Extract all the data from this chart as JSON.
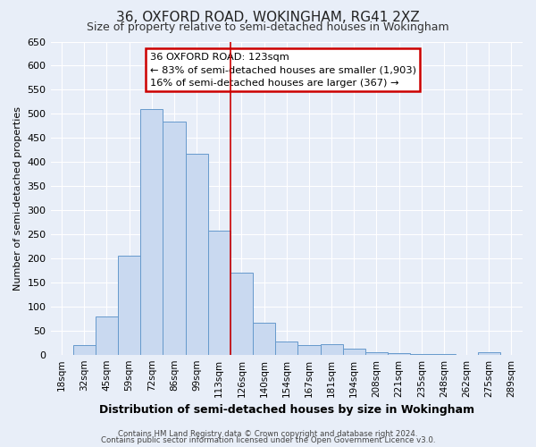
{
  "title": "36, OXFORD ROAD, WOKINGHAM, RG41 2XZ",
  "subtitle": "Size of property relative to semi-detached houses in Wokingham",
  "xlabel": "Distribution of semi-detached houses by size in Wokingham",
  "ylabel": "Number of semi-detached properties",
  "bar_labels": [
    "18sqm",
    "32sqm",
    "45sqm",
    "59sqm",
    "72sqm",
    "86sqm",
    "99sqm",
    "113sqm",
    "126sqm",
    "140sqm",
    "154sqm",
    "167sqm",
    "181sqm",
    "194sqm",
    "208sqm",
    "221sqm",
    "235sqm",
    "248sqm",
    "262sqm",
    "275sqm",
    "289sqm"
  ],
  "bar_values": [
    0,
    20,
    80,
    205,
    510,
    483,
    417,
    258,
    170,
    67,
    27,
    20,
    22,
    13,
    5,
    3,
    2,
    2,
    0,
    5,
    0
  ],
  "bar_color": "#c9d9f0",
  "bar_edgecolor": "#6699cc",
  "vline_color": "#cc0000",
  "ylim": [
    0,
    650
  ],
  "yticks": [
    0,
    50,
    100,
    150,
    200,
    250,
    300,
    350,
    400,
    450,
    500,
    550,
    600,
    650
  ],
  "annotation_title": "36 OXFORD ROAD: 123sqm",
  "annotation_line1": "← 83% of semi-detached houses are smaller (1,903)",
  "annotation_line2": "16% of semi-detached houses are larger (367) →",
  "annotation_box_edgecolor": "#cc0000",
  "footer1": "Contains HM Land Registry data © Crown copyright and database right 2024.",
  "footer2": "Contains public sector information licensed under the Open Government Licence v3.0.",
  "bg_color": "#e8eef8",
  "plot_bg_color": "#e8eef8"
}
